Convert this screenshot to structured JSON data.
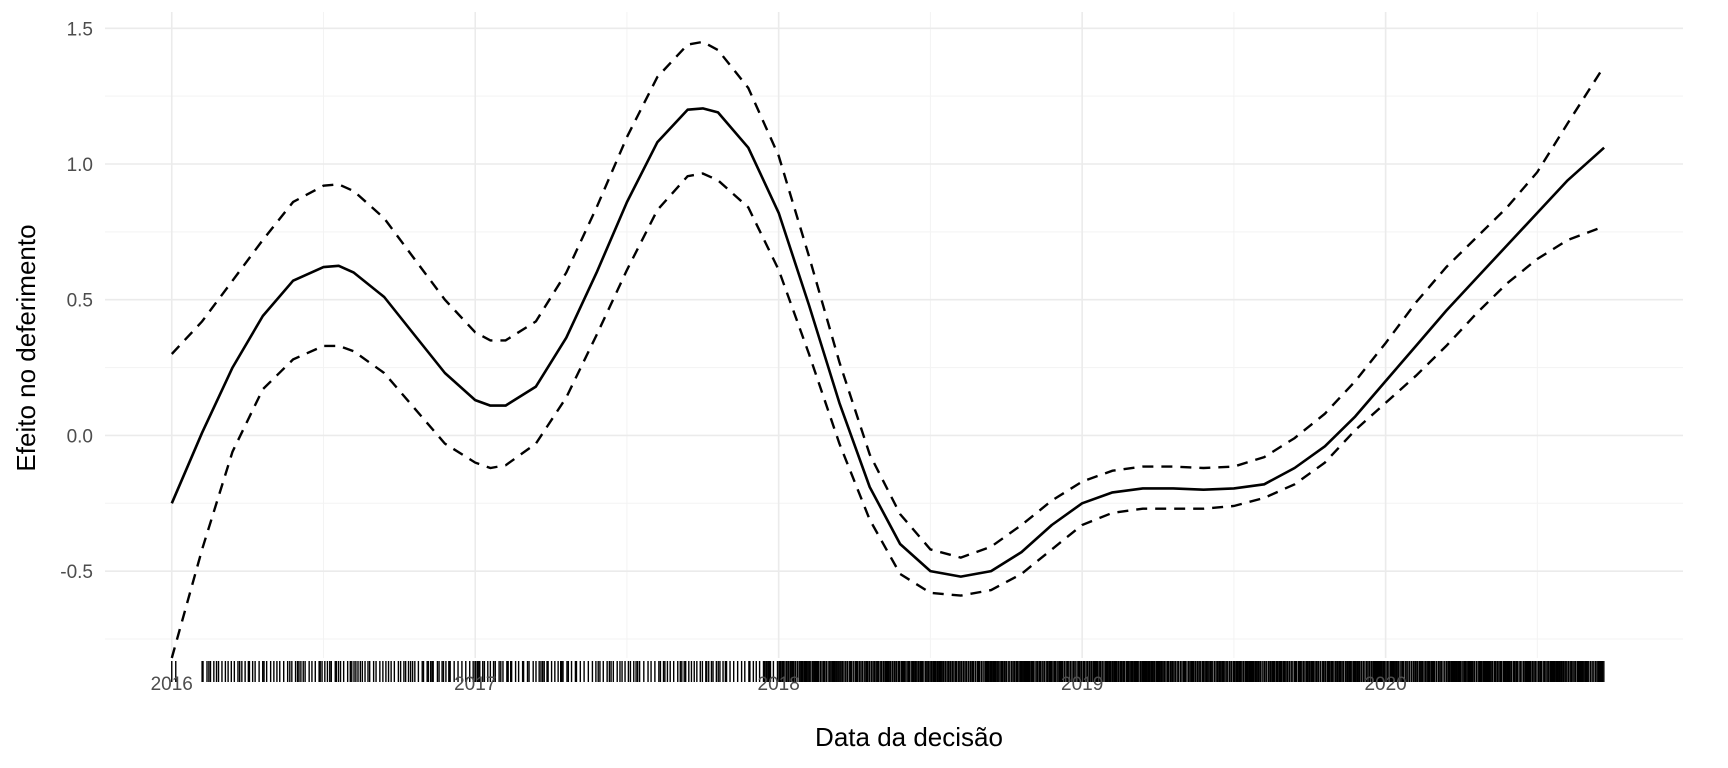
{
  "chart_data": {
    "type": "line",
    "title": "",
    "xlabel": "Data da decisão",
    "ylabel": "Efeito no deferimento",
    "xlim": [
      2015.78,
      2020.98
    ],
    "ylim": [
      -0.82,
      1.56
    ],
    "x_ticks": [
      2016,
      2017,
      2018,
      2019,
      2020
    ],
    "x_tick_labels": [
      "2016",
      "2017",
      "2018",
      "2019",
      "2020"
    ],
    "y_ticks": [
      -0.5,
      0.0,
      0.5,
      1.0,
      1.5
    ],
    "y_tick_labels": [
      "-0.5",
      "0.0",
      "0.5",
      "1.0",
      "1.5"
    ],
    "grid": true,
    "legend": "none",
    "series": [
      {
        "role": "fit",
        "style": "solid",
        "points": [
          [
            2016.0,
            -0.25
          ],
          [
            2016.1,
            0.01
          ],
          [
            2016.2,
            0.25
          ],
          [
            2016.3,
            0.44
          ],
          [
            2016.4,
            0.57
          ],
          [
            2016.5,
            0.62
          ],
          [
            2016.55,
            0.625
          ],
          [
            2016.6,
            0.6
          ],
          [
            2016.7,
            0.51
          ],
          [
            2016.8,
            0.37
          ],
          [
            2016.9,
            0.23
          ],
          [
            2017.0,
            0.13
          ],
          [
            2017.05,
            0.11
          ],
          [
            2017.1,
            0.11
          ],
          [
            2017.2,
            0.18
          ],
          [
            2017.3,
            0.36
          ],
          [
            2017.4,
            0.6
          ],
          [
            2017.5,
            0.86
          ],
          [
            2017.6,
            1.08
          ],
          [
            2017.7,
            1.2
          ],
          [
            2017.75,
            1.205
          ],
          [
            2017.8,
            1.19
          ],
          [
            2017.9,
            1.06
          ],
          [
            2018.0,
            0.82
          ],
          [
            2018.1,
            0.48
          ],
          [
            2018.2,
            0.12
          ],
          [
            2018.3,
            -0.19
          ],
          [
            2018.4,
            -0.4
          ],
          [
            2018.5,
            -0.5
          ],
          [
            2018.6,
            -0.52
          ],
          [
            2018.7,
            -0.5
          ],
          [
            2018.8,
            -0.43
          ],
          [
            2018.9,
            -0.33
          ],
          [
            2019.0,
            -0.25
          ],
          [
            2019.1,
            -0.21
          ],
          [
            2019.2,
            -0.195
          ],
          [
            2019.3,
            -0.195
          ],
          [
            2019.4,
            -0.2
          ],
          [
            2019.5,
            -0.195
          ],
          [
            2019.6,
            -0.18
          ],
          [
            2019.7,
            -0.12
          ],
          [
            2019.8,
            -0.04
          ],
          [
            2019.9,
            0.07
          ],
          [
            2020.0,
            0.2
          ],
          [
            2020.1,
            0.33
          ],
          [
            2020.2,
            0.46
          ],
          [
            2020.3,
            0.58
          ],
          [
            2020.4,
            0.7
          ],
          [
            2020.5,
            0.82
          ],
          [
            2020.6,
            0.94
          ],
          [
            2020.72,
            1.06
          ]
        ]
      },
      {
        "role": "upper",
        "style": "dashed",
        "points": [
          [
            2016.0,
            0.3
          ],
          [
            2016.1,
            0.42
          ],
          [
            2016.2,
            0.57
          ],
          [
            2016.3,
            0.72
          ],
          [
            2016.4,
            0.86
          ],
          [
            2016.5,
            0.92
          ],
          [
            2016.55,
            0.925
          ],
          [
            2016.6,
            0.9
          ],
          [
            2016.7,
            0.8
          ],
          [
            2016.8,
            0.65
          ],
          [
            2016.9,
            0.5
          ],
          [
            2017.0,
            0.38
          ],
          [
            2017.05,
            0.35
          ],
          [
            2017.1,
            0.35
          ],
          [
            2017.2,
            0.42
          ],
          [
            2017.3,
            0.6
          ],
          [
            2017.4,
            0.84
          ],
          [
            2017.5,
            1.1
          ],
          [
            2017.6,
            1.32
          ],
          [
            2017.7,
            1.44
          ],
          [
            2017.75,
            1.45
          ],
          [
            2017.8,
            1.42
          ],
          [
            2017.9,
            1.28
          ],
          [
            2018.0,
            1.03
          ],
          [
            2018.1,
            0.66
          ],
          [
            2018.2,
            0.27
          ],
          [
            2018.3,
            -0.07
          ],
          [
            2018.4,
            -0.29
          ],
          [
            2018.5,
            -0.42
          ],
          [
            2018.6,
            -0.45
          ],
          [
            2018.7,
            -0.41
          ],
          [
            2018.8,
            -0.33
          ],
          [
            2018.9,
            -0.24
          ],
          [
            2019.0,
            -0.17
          ],
          [
            2019.1,
            -0.13
          ],
          [
            2019.2,
            -0.115
          ],
          [
            2019.3,
            -0.115
          ],
          [
            2019.4,
            -0.12
          ],
          [
            2019.5,
            -0.115
          ],
          [
            2019.6,
            -0.08
          ],
          [
            2019.7,
            -0.01
          ],
          [
            2019.8,
            0.08
          ],
          [
            2019.9,
            0.2
          ],
          [
            2020.0,
            0.34
          ],
          [
            2020.1,
            0.49
          ],
          [
            2020.2,
            0.62
          ],
          [
            2020.3,
            0.73
          ],
          [
            2020.4,
            0.84
          ],
          [
            2020.5,
            0.97
          ],
          [
            2020.6,
            1.15
          ],
          [
            2020.72,
            1.36
          ]
        ]
      },
      {
        "role": "lower",
        "style": "dashed",
        "points": [
          [
            2016.0,
            -0.82
          ],
          [
            2016.1,
            -0.42
          ],
          [
            2016.2,
            -0.06
          ],
          [
            2016.3,
            0.17
          ],
          [
            2016.4,
            0.28
          ],
          [
            2016.5,
            0.33
          ],
          [
            2016.55,
            0.33
          ],
          [
            2016.6,
            0.31
          ],
          [
            2016.7,
            0.23
          ],
          [
            2016.8,
            0.1
          ],
          [
            2016.9,
            -0.03
          ],
          [
            2017.0,
            -0.1
          ],
          [
            2017.05,
            -0.12
          ],
          [
            2017.1,
            -0.11
          ],
          [
            2017.2,
            -0.03
          ],
          [
            2017.3,
            0.14
          ],
          [
            2017.4,
            0.37
          ],
          [
            2017.5,
            0.61
          ],
          [
            2017.6,
            0.83
          ],
          [
            2017.7,
            0.955
          ],
          [
            2017.75,
            0.965
          ],
          [
            2017.8,
            0.94
          ],
          [
            2017.9,
            0.84
          ],
          [
            2018.0,
            0.61
          ],
          [
            2018.1,
            0.3
          ],
          [
            2018.2,
            -0.03
          ],
          [
            2018.3,
            -0.31
          ],
          [
            2018.4,
            -0.51
          ],
          [
            2018.5,
            -0.58
          ],
          [
            2018.6,
            -0.59
          ],
          [
            2018.7,
            -0.57
          ],
          [
            2018.8,
            -0.51
          ],
          [
            2018.9,
            -0.42
          ],
          [
            2019.0,
            -0.33
          ],
          [
            2019.1,
            -0.285
          ],
          [
            2019.2,
            -0.27
          ],
          [
            2019.3,
            -0.27
          ],
          [
            2019.4,
            -0.27
          ],
          [
            2019.5,
            -0.26
          ],
          [
            2019.6,
            -0.23
          ],
          [
            2019.7,
            -0.18
          ],
          [
            2019.8,
            -0.1
          ],
          [
            2019.9,
            0.02
          ],
          [
            2020.0,
            0.12
          ],
          [
            2020.1,
            0.22
          ],
          [
            2020.2,
            0.33
          ],
          [
            2020.3,
            0.45
          ],
          [
            2020.4,
            0.56
          ],
          [
            2020.5,
            0.65
          ],
          [
            2020.6,
            0.72
          ],
          [
            2020.72,
            0.77
          ]
        ]
      }
    ],
    "rug_x_range": [
      2016.0,
      2020.72
    ],
    "rug_dense_from": 2018.0
  }
}
